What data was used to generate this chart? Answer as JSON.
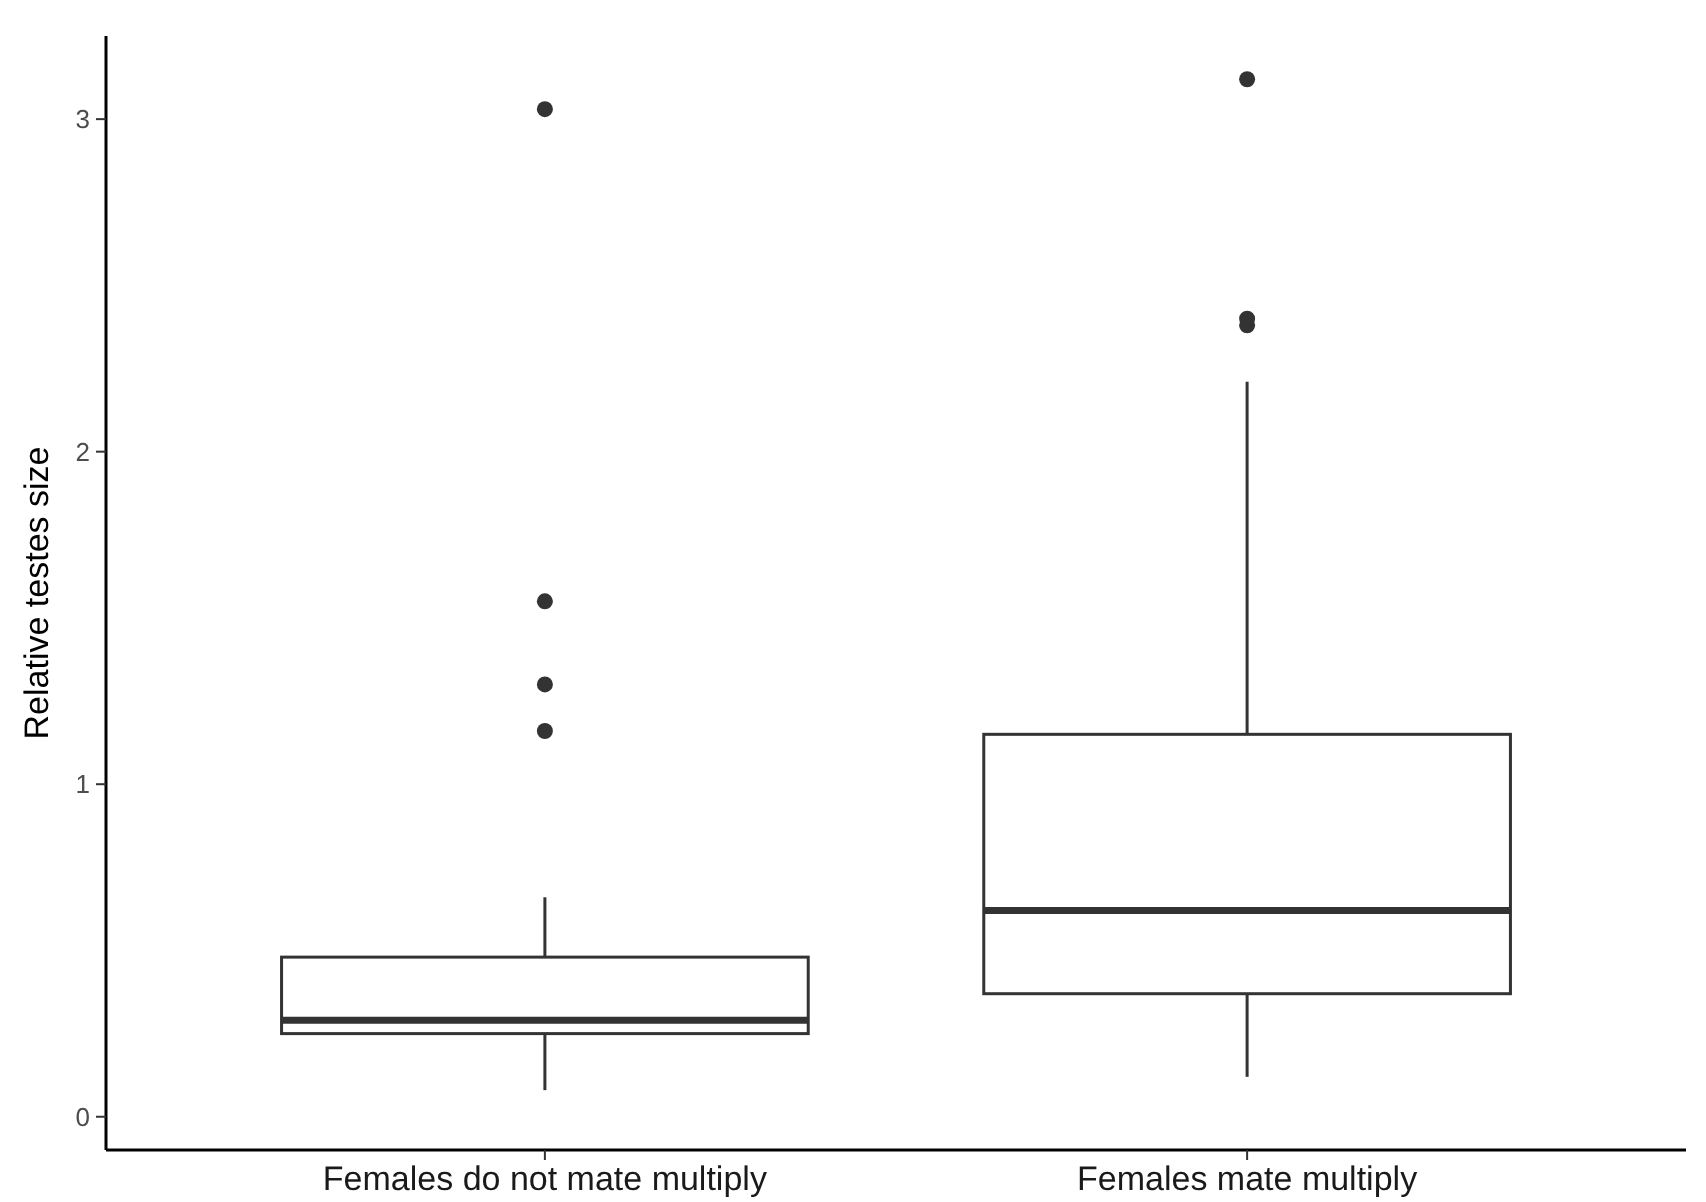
{
  "chart_data": {
    "type": "box",
    "ylabel": "Relative testes size",
    "categories": [
      "Females do not mate multiply",
      "Females mate multiply"
    ],
    "boxes": [
      {
        "low": 0.08,
        "q1": 0.25,
        "median": 0.29,
        "q3": 0.48,
        "high": 0.66,
        "outliers": [
          1.16,
          1.3,
          1.55,
          3.03
        ]
      },
      {
        "low": 0.12,
        "q1": 0.37,
        "median": 0.62,
        "q3": 1.15,
        "high": 2.21,
        "outliers": [
          2.38,
          2.4,
          3.12
        ]
      }
    ],
    "color": "#333333",
    "ylim": [
      -0.1,
      3.25
    ],
    "yticks": [
      0,
      1,
      2,
      3
    ],
    "grid": false
  }
}
